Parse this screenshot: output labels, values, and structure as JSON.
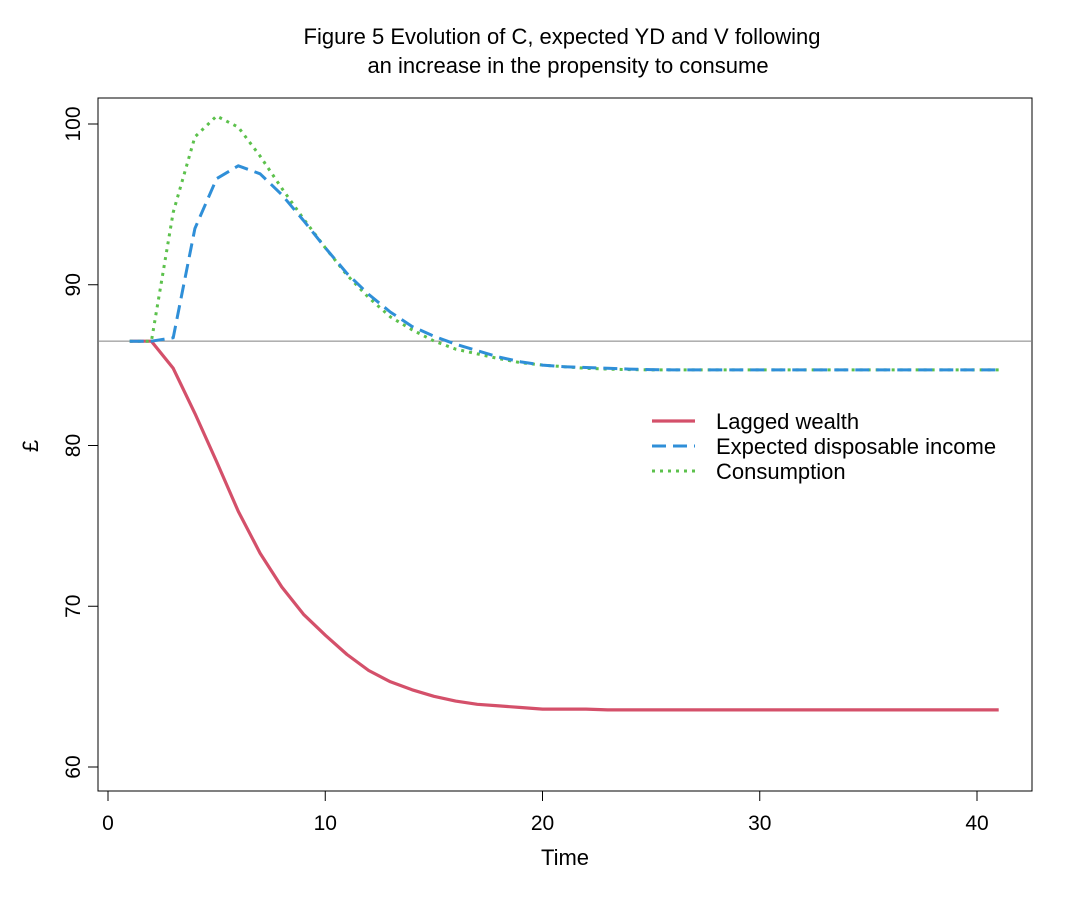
{
  "chart_data": {
    "type": "line",
    "title": "Figure 5  Evolution of C, expected YD and V following",
    "subtitle": "an increase in the propensity to consume",
    "xlabel": "Time",
    "ylabel": "£",
    "xlim": [
      0,
      41
    ],
    "ylim": [
      60,
      100
    ],
    "xticks": [
      0,
      10,
      20,
      30,
      40
    ],
    "yticks": [
      60,
      70,
      80,
      90,
      100
    ],
    "reference_line": 86.49,
    "legend_position": "right",
    "series": [
      {
        "name": "Lagged wealth",
        "color": "#d4506a",
        "style": "solid",
        "x": [
          1,
          2,
          3,
          4,
          5,
          6,
          7,
          8,
          9,
          10,
          11,
          12,
          13,
          14,
          15,
          16,
          17,
          18,
          19,
          20,
          21,
          22,
          23,
          24,
          25,
          26,
          27,
          28,
          29,
          30,
          31,
          32,
          33,
          34,
          35,
          36,
          37,
          38,
          39,
          40,
          41
        ],
        "values": [
          86.49,
          86.49,
          84.8,
          82.0,
          79.0,
          75.9,
          73.3,
          71.2,
          69.5,
          68.2,
          67.0,
          66.0,
          65.3,
          64.8,
          64.4,
          64.1,
          63.9,
          63.8,
          63.7,
          63.6,
          63.6,
          63.6,
          63.55,
          63.55,
          63.55,
          63.55,
          63.55,
          63.55,
          63.55,
          63.55,
          63.55,
          63.55,
          63.55,
          63.55,
          63.55,
          63.55,
          63.55,
          63.55,
          63.55,
          63.55,
          63.55
        ]
      },
      {
        "name": "Expected disposable income",
        "color": "#2f8fd8",
        "style": "dashed",
        "x": [
          1,
          2,
          3,
          4,
          5,
          6,
          7,
          8,
          9,
          10,
          11,
          12,
          13,
          14,
          15,
          16,
          17,
          18,
          19,
          20,
          21,
          22,
          23,
          24,
          25,
          26,
          27,
          28,
          29,
          30,
          31,
          32,
          33,
          34,
          35,
          36,
          37,
          38,
          39,
          40,
          41
        ],
        "values": [
          86.49,
          86.49,
          86.7,
          93.5,
          96.6,
          97.4,
          96.9,
          95.6,
          94.0,
          92.3,
          90.7,
          89.4,
          88.3,
          87.4,
          86.8,
          86.3,
          85.9,
          85.5,
          85.2,
          85.0,
          84.9,
          84.85,
          84.8,
          84.75,
          84.72,
          84.7,
          84.7,
          84.7,
          84.7,
          84.7,
          84.7,
          84.7,
          84.7,
          84.7,
          84.7,
          84.7,
          84.7,
          84.7,
          84.7,
          84.7,
          84.7
        ]
      },
      {
        "name": "Consumption",
        "color": "#5cc14c",
        "style": "dotted",
        "x": [
          1,
          2,
          3,
          4,
          5,
          6,
          7,
          8,
          9,
          10,
          11,
          12,
          13,
          14,
          15,
          16,
          17,
          18,
          19,
          20,
          21,
          22,
          23,
          24,
          25,
          26,
          27,
          28,
          29,
          30,
          31,
          32,
          33,
          34,
          35,
          36,
          37,
          38,
          39,
          40,
          41
        ],
        "values": [
          86.49,
          86.49,
          94.5,
          99.2,
          100.5,
          99.8,
          98.0,
          96.0,
          94.1,
          92.3,
          90.6,
          89.2,
          88.0,
          87.2,
          86.5,
          86.0,
          85.7,
          85.4,
          85.15,
          85.0,
          84.9,
          84.8,
          84.75,
          84.72,
          84.7,
          84.7,
          84.7,
          84.7,
          84.7,
          84.7,
          84.7,
          84.7,
          84.7,
          84.7,
          84.7,
          84.7,
          84.7,
          84.7,
          84.7,
          84.7,
          84.7
        ]
      }
    ]
  }
}
